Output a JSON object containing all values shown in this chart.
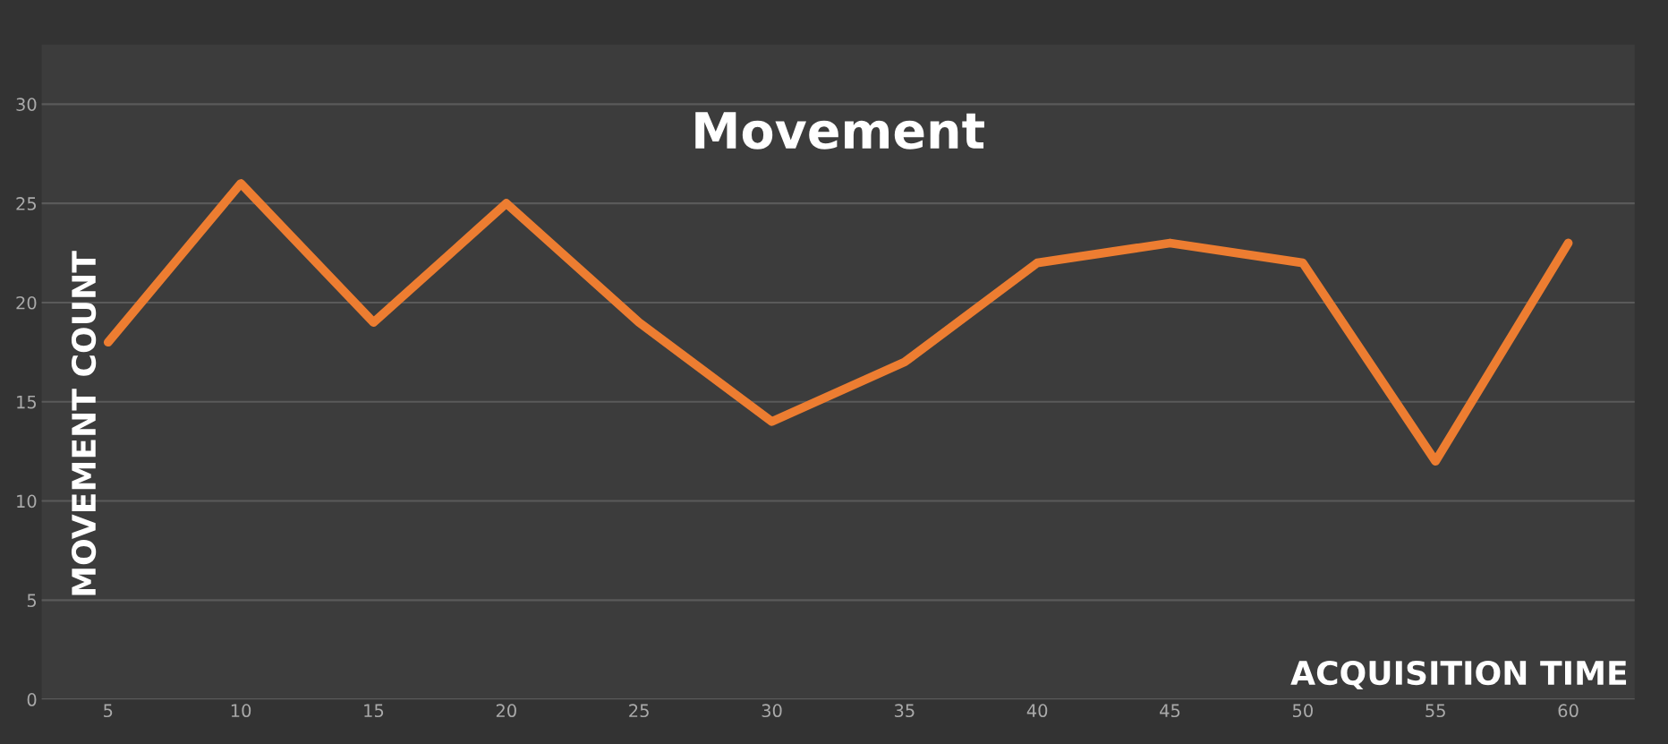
{
  "chart_data": {
    "type": "line",
    "title": "Movement",
    "xlabel": "ACQUISITION TIME",
    "ylabel": "MOVEMENT COUNT",
    "categories": [
      "5",
      "10",
      "15",
      "20",
      "25",
      "30",
      "35",
      "40",
      "45",
      "50",
      "55",
      "60"
    ],
    "series": [
      {
        "color": "#ed7d31",
        "values": [
          18,
          26,
          19,
          25,
          19,
          14,
          17,
          22,
          23,
          22,
          12,
          23
        ]
      }
    ],
    "ylim": [
      0,
      33
    ],
    "yticks": [
      0,
      5,
      10,
      15,
      20,
      25,
      30
    ],
    "grid": "y",
    "marker": "none",
    "line_style": "solid"
  }
}
